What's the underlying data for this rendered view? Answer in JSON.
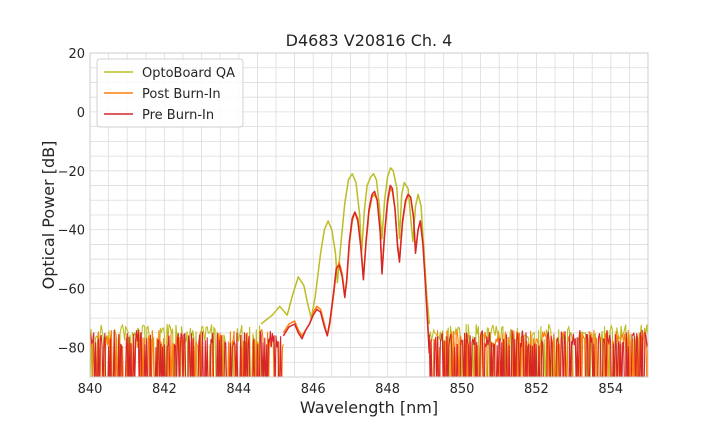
{
  "chart_data": {
    "type": "line",
    "title": "D4683 V20816 Ch. 4",
    "xlabel": "Wavelength [nm]",
    "ylabel": "Optical Power [dB]",
    "xlim": [
      840,
      855
    ],
    "ylim": [
      -90,
      20
    ],
    "xticks": [
      840,
      842,
      844,
      846,
      848,
      850,
      852,
      854
    ],
    "xtick_labels": [
      "840",
      "842",
      "844",
      "846",
      "848",
      "850",
      "852",
      "854"
    ],
    "yticks": [
      20,
      0,
      -20,
      -40,
      -60,
      -80
    ],
    "ytick_labels": [
      "20",
      "0",
      "−20",
      "−40",
      "−60",
      "−80"
    ],
    "grid": true,
    "legend_position": "top-left",
    "noise_floor": {
      "x_range_left": [
        840,
        845.2
      ],
      "x_range_right": [
        849.1,
        855
      ],
      "level_low": -90,
      "level_high": -72
    },
    "series": [
      {
        "name": "OptoBoard QA",
        "color": "#bcbd22",
        "points": [
          [
            844.6,
            -72
          ],
          [
            844.9,
            -69
          ],
          [
            845.1,
            -66
          ],
          [
            845.3,
            -69
          ],
          [
            845.45,
            -62
          ],
          [
            845.6,
            -56
          ],
          [
            845.75,
            -59
          ],
          [
            845.85,
            -65
          ],
          [
            845.95,
            -70
          ],
          [
            846.05,
            -63
          ],
          [
            846.2,
            -48
          ],
          [
            846.3,
            -40
          ],
          [
            846.4,
            -37
          ],
          [
            846.5,
            -40
          ],
          [
            846.6,
            -48
          ],
          [
            846.65,
            -58
          ],
          [
            846.72,
            -48
          ],
          [
            846.85,
            -31
          ],
          [
            846.95,
            -23
          ],
          [
            847.05,
            -21
          ],
          [
            847.15,
            -24
          ],
          [
            847.25,
            -35
          ],
          [
            847.3,
            -48
          ],
          [
            847.38,
            -33
          ],
          [
            847.45,
            -25
          ],
          [
            847.55,
            -22
          ],
          [
            847.62,
            -21
          ],
          [
            847.7,
            -23
          ],
          [
            847.78,
            -32
          ],
          [
            847.85,
            -43
          ],
          [
            847.92,
            -30
          ],
          [
            848.0,
            -22
          ],
          [
            848.08,
            -19
          ],
          [
            848.15,
            -20
          ],
          [
            848.25,
            -26
          ],
          [
            848.32,
            -43
          ],
          [
            848.38,
            -28
          ],
          [
            848.45,
            -24
          ],
          [
            848.55,
            -26
          ],
          [
            848.62,
            -36
          ],
          [
            848.68,
            -44
          ],
          [
            848.75,
            -32
          ],
          [
            848.82,
            -28
          ],
          [
            848.9,
            -32
          ],
          [
            848.98,
            -48
          ],
          [
            849.05,
            -62
          ],
          [
            849.12,
            -72
          ]
        ]
      },
      {
        "name": "Post Burn-In",
        "color": "#ff7f0e",
        "points": [
          [
            845.2,
            -75
          ],
          [
            845.35,
            -72
          ],
          [
            845.5,
            -71
          ],
          [
            845.6,
            -74
          ],
          [
            845.7,
            -76
          ],
          [
            845.8,
            -74
          ],
          [
            845.9,
            -72
          ],
          [
            846.0,
            -68
          ],
          [
            846.1,
            -66
          ],
          [
            846.2,
            -67
          ],
          [
            846.3,
            -72
          ],
          [
            846.38,
            -76
          ],
          [
            846.45,
            -72
          ],
          [
            846.55,
            -62
          ],
          [
            846.62,
            -54
          ],
          [
            846.7,
            -51
          ],
          [
            846.78,
            -55
          ],
          [
            846.85,
            -62
          ],
          [
            846.9,
            -58
          ],
          [
            846.97,
            -45
          ],
          [
            847.05,
            -37
          ],
          [
            847.12,
            -34
          ],
          [
            847.2,
            -36
          ],
          [
            847.28,
            -45
          ],
          [
            847.35,
            -56
          ],
          [
            847.42,
            -45
          ],
          [
            847.5,
            -34
          ],
          [
            847.58,
            -29
          ],
          [
            847.65,
            -28
          ],
          [
            847.72,
            -30
          ],
          [
            847.8,
            -40
          ],
          [
            847.85,
            -54
          ],
          [
            847.92,
            -42
          ],
          [
            848.0,
            -31
          ],
          [
            848.07,
            -26
          ],
          [
            848.13,
            -27
          ],
          [
            848.2,
            -33
          ],
          [
            848.27,
            -45
          ],
          [
            848.32,
            -50
          ],
          [
            848.4,
            -38
          ],
          [
            848.48,
            -31
          ],
          [
            848.55,
            -28
          ],
          [
            848.62,
            -29
          ],
          [
            848.7,
            -36
          ],
          [
            848.75,
            -47
          ],
          [
            848.82,
            -40
          ],
          [
            848.88,
            -37
          ],
          [
            848.95,
            -44
          ],
          [
            849.02,
            -58
          ],
          [
            849.08,
            -72
          ],
          [
            849.12,
            -80
          ]
        ]
      },
      {
        "name": "Pre Burn-In",
        "color": "#d62728",
        "points": [
          [
            845.2,
            -76
          ],
          [
            845.35,
            -73
          ],
          [
            845.5,
            -72
          ],
          [
            845.6,
            -75
          ],
          [
            845.7,
            -77
          ],
          [
            845.8,
            -74
          ],
          [
            845.9,
            -72
          ],
          [
            846.0,
            -69
          ],
          [
            846.1,
            -67
          ],
          [
            846.2,
            -68
          ],
          [
            846.3,
            -73
          ],
          [
            846.38,
            -76
          ],
          [
            846.45,
            -71
          ],
          [
            846.55,
            -61
          ],
          [
            846.62,
            -53
          ],
          [
            846.7,
            -52
          ],
          [
            846.78,
            -56
          ],
          [
            846.85,
            -63
          ],
          [
            846.9,
            -57
          ],
          [
            846.97,
            -44
          ],
          [
            847.05,
            -36
          ],
          [
            847.12,
            -34
          ],
          [
            847.2,
            -37
          ],
          [
            847.28,
            -46
          ],
          [
            847.35,
            -57
          ],
          [
            847.42,
            -44
          ],
          [
            847.5,
            -33
          ],
          [
            847.58,
            -28
          ],
          [
            847.65,
            -27
          ],
          [
            847.72,
            -30
          ],
          [
            847.8,
            -41
          ],
          [
            847.85,
            -55
          ],
          [
            847.92,
            -41
          ],
          [
            848.0,
            -30
          ],
          [
            848.07,
            -25
          ],
          [
            848.13,
            -26
          ],
          [
            848.2,
            -33
          ],
          [
            848.27,
            -46
          ],
          [
            848.32,
            -51
          ],
          [
            848.4,
            -37
          ],
          [
            848.48,
            -30
          ],
          [
            848.55,
            -28
          ],
          [
            848.62,
            -29
          ],
          [
            848.7,
            -36
          ],
          [
            848.75,
            -48
          ],
          [
            848.82,
            -40
          ],
          [
            848.88,
            -37
          ],
          [
            848.95,
            -45
          ],
          [
            849.02,
            -59
          ],
          [
            849.08,
            -73
          ],
          [
            849.12,
            -82
          ]
        ]
      }
    ]
  }
}
